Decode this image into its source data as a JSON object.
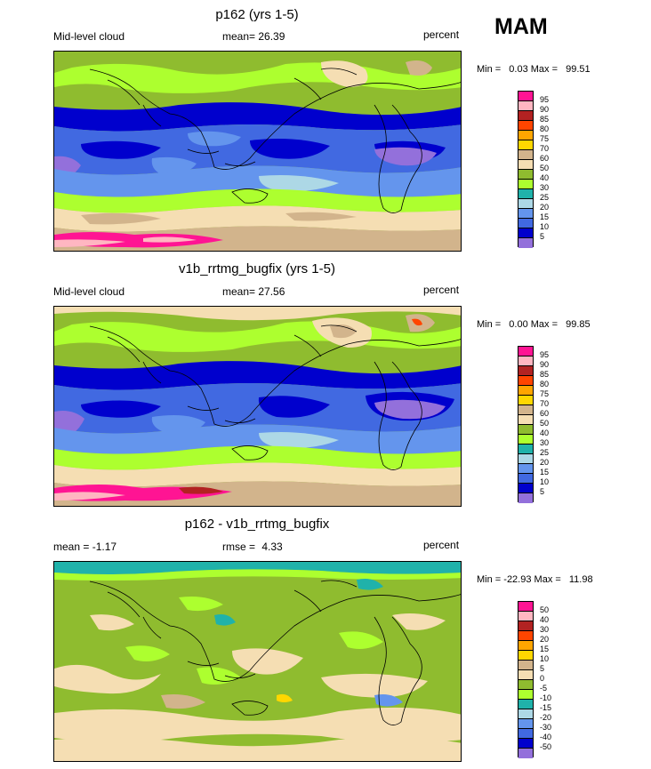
{
  "season": "MAM",
  "panels": [
    {
      "title": "p162 (yrs 1-5)",
      "left_label": "Mid-level cloud",
      "mean_label": "mean=",
      "mean_value": "26.39",
      "units": "percent",
      "min_label": "Min =",
      "min_value": "0.03",
      "max_label": "Max =",
      "max_value": "99.51",
      "levels": [
        "95",
        "90",
        "85",
        "80",
        "75",
        "70",
        "60",
        "50",
        "40",
        "30",
        "25",
        "20",
        "15",
        "10",
        "5"
      ],
      "colors": [
        "#ff1493",
        "#ffb6c1",
        "#b22222",
        "#ff4500",
        "#ffa500",
        "#ffd700",
        "#d2b48c",
        "#f5deb3",
        "#8fbc2f",
        "#adff2f",
        "#20b2aa",
        "#add8e6",
        "#6495ed",
        "#4169e1",
        "#0000cd",
        "#9370db"
      ]
    },
    {
      "title": "v1b_rrtmg_bugfix (yrs 1-5)",
      "left_label": "Mid-level cloud",
      "mean_label": "mean=",
      "mean_value": "27.56",
      "units": "percent",
      "min_label": "Min =",
      "min_value": "0.00",
      "max_label": "Max =",
      "max_value": "99.85",
      "levels": [
        "95",
        "90",
        "85",
        "80",
        "75",
        "70",
        "60",
        "50",
        "40",
        "30",
        "25",
        "20",
        "15",
        "10",
        "5"
      ],
      "colors": [
        "#ff1493",
        "#ffb6c1",
        "#b22222",
        "#ff4500",
        "#ffa500",
        "#ffd700",
        "#d2b48c",
        "#f5deb3",
        "#8fbc2f",
        "#adff2f",
        "#20b2aa",
        "#add8e6",
        "#6495ed",
        "#4169e1",
        "#0000cd",
        "#9370db"
      ]
    },
    {
      "title": "p162 - v1b_rrtmg_bugfix",
      "left_label": "mean =",
      "left_value": "-1.17",
      "mean_label": "rmse =",
      "mean_value": "4.33",
      "units": "percent",
      "min_label": "Min =",
      "min_value": "-22.93",
      "max_label": "Max =",
      "max_value": "11.98",
      "levels": [
        "50",
        "40",
        "30",
        "20",
        "15",
        "10",
        "5",
        "0",
        "-5",
        "-10",
        "-15",
        "-20",
        "-30",
        "-40",
        "-50"
      ],
      "colors": [
        "#ff1493",
        "#ffb6c1",
        "#b22222",
        "#ff4500",
        "#ffa500",
        "#ffd700",
        "#d2b48c",
        "#f5deb3",
        "#8fbc2f",
        "#adff2f",
        "#20b2aa",
        "#add8e6",
        "#6495ed",
        "#4169e1",
        "#0000cd",
        "#9370db"
      ]
    }
  ]
}
